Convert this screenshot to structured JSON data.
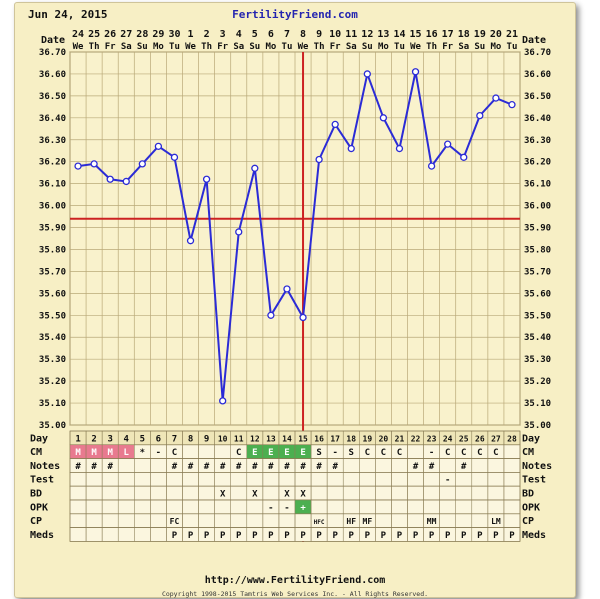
{
  "header": {
    "date": "Jun 24, 2015",
    "site": "FertilityFriend.com"
  },
  "footer": {
    "url": "http://www.FertilityFriend.com",
    "copyright": "Copyright 1998-2015 Tamtris Web Services Inc. - All Rights Reserved."
  },
  "colors": {
    "background": "#f7efc5",
    "temp_line": "#2b2bd6",
    "coverline": "#cc2222",
    "ovulation_line": "#cc2222",
    "menstruation": "#e87a8f",
    "fertile_cm": "#4caf50",
    "grid": "#b9a978"
  },
  "chart_data": {
    "type": "line",
    "dates": [
      "24",
      "25",
      "26",
      "27",
      "28",
      "29",
      "30",
      "1",
      "2",
      "3",
      "4",
      "5",
      "6",
      "7",
      "8",
      "9",
      "10",
      "11",
      "12",
      "13",
      "14",
      "15",
      "16",
      "17",
      "18",
      "19",
      "20",
      "21"
    ],
    "weekdays": [
      "We",
      "Th",
      "Fr",
      "Sa",
      "Su",
      "Mo",
      "Tu",
      "We",
      "Th",
      "Fr",
      "Sa",
      "Su",
      "Mo",
      "Tu",
      "We",
      "Th",
      "Fr",
      "Sa",
      "Su",
      "Mo",
      "Tu",
      "We",
      "Th",
      "Fr",
      "Sa",
      "Su",
      "Mo",
      "Tu"
    ],
    "days": [
      1,
      2,
      3,
      4,
      5,
      6,
      7,
      8,
      9,
      10,
      11,
      12,
      13,
      14,
      15,
      16,
      17,
      18,
      19,
      20,
      21,
      22,
      23,
      24,
      25,
      26,
      27,
      28
    ],
    "temps": [
      36.18,
      36.19,
      36.12,
      36.11,
      36.19,
      36.27,
      36.22,
      35.84,
      36.12,
      35.11,
      35.88,
      36.17,
      35.5,
      35.62,
      35.49,
      36.21,
      36.37,
      36.26,
      36.6,
      36.4,
      36.26,
      36.61,
      36.18,
      36.28,
      36.22,
      36.41,
      36.49,
      36.46
    ],
    "ylim": [
      35.0,
      36.7
    ],
    "ytick_labels": [
      "35.00",
      "35.10",
      "35.20",
      "35.30",
      "35.40",
      "35.50",
      "35.60",
      "35.70",
      "35.80",
      "35.90",
      "36.00",
      "36.10",
      "36.20",
      "36.30",
      "36.40",
      "36.50",
      "36.60",
      "36.70"
    ],
    "coverline": 35.94,
    "ovulation_day": 15,
    "x_header_label": "Date",
    "grid": true
  },
  "rows": {
    "labels": [
      "Day",
      "CM",
      "Notes",
      "Test",
      "BD",
      "OPK",
      "CP",
      "Meds"
    ],
    "cm": [
      "M",
      "M",
      "M",
      "L",
      "*",
      "-",
      "C",
      "",
      "",
      "",
      "C",
      "E",
      "E",
      "E",
      "E",
      "S",
      "-",
      "S",
      "C",
      "C",
      "C",
      "",
      "-",
      "C",
      "C",
      "C",
      "C",
      ""
    ],
    "notes": [
      "#",
      "#",
      "#",
      "",
      "",
      "",
      "#",
      "#",
      "#",
      "#",
      "#",
      "#",
      "#",
      "#",
      "#",
      "#",
      "#",
      "",
      "",
      "",
      "",
      "#",
      "#",
      "",
      "#",
      "",
      "",
      ""
    ],
    "test": [
      "",
      "",
      "",
      "",
      "",
      "",
      "",
      "",
      "",
      "",
      "",
      "",
      "",
      "",
      "",
      "",
      "",
      "",
      "",
      "",
      "",
      "",
      "",
      "-",
      "",
      "",
      "",
      ""
    ],
    "bd": [
      "",
      "",
      "",
      "",
      "",
      "",
      "",
      "",
      "",
      "X",
      "",
      "X",
      "",
      "X",
      "X",
      "",
      "",
      "",
      "",
      "",
      "",
      "",
      "",
      "",
      "",
      "",
      "",
      ""
    ],
    "opk": [
      "",
      "",
      "",
      "",
      "",
      "",
      "",
      "",
      "",
      "",
      "",
      "",
      "-",
      "-",
      "+",
      "",
      "",
      "",
      "",
      "",
      "",
      "",
      "",
      "",
      "",
      "",
      "",
      ""
    ],
    "cp": [
      "",
      "",
      "",
      "",
      "",
      "",
      "FC",
      "",
      "",
      "",
      "",
      "",
      "",
      "",
      "",
      "HFC",
      "",
      "HF",
      "MF",
      "",
      "",
      "",
      "MM",
      "",
      "",
      "",
      "LM",
      ""
    ],
    "meds": [
      "",
      "",
      "",
      "",
      "",
      "",
      "P",
      "P",
      "P",
      "P",
      "P",
      "P",
      "P",
      "P",
      "P",
      "P",
      "P",
      "P",
      "P",
      "P",
      "P",
      "P",
      "P",
      "P",
      "P",
      "P",
      "P",
      "P"
    ]
  }
}
